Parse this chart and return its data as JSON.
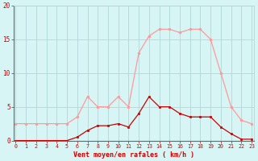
{
  "hours": [
    0,
    1,
    2,
    3,
    4,
    5,
    6,
    7,
    8,
    9,
    10,
    11,
    12,
    13,
    14,
    15,
    16,
    17,
    18,
    19,
    20,
    21,
    22,
    23
  ],
  "rafales": [
    2.5,
    2.5,
    2.5,
    2.5,
    2.5,
    2.5,
    3.5,
    6.5,
    5.0,
    5.0,
    6.5,
    5.0,
    13.0,
    15.5,
    16.5,
    16.5,
    16.0,
    16.5,
    16.5,
    15.0,
    10.0,
    5.0,
    3.0,
    2.5
  ],
  "moyen": [
    0.0,
    0.0,
    0.0,
    0.0,
    0.0,
    0.0,
    0.5,
    1.5,
    2.2,
    2.2,
    2.5,
    2.0,
    4.0,
    6.5,
    5.0,
    5.0,
    4.0,
    3.5,
    3.5,
    3.5,
    2.0,
    1.0,
    0.2,
    0.2
  ],
  "color_rafales": "#ff9999",
  "color_moyen": "#cc0000",
  "background": "#d8f5f5",
  "grid_color": "#b0d8d8",
  "xlabel": "Vent moyen/en rafales ( km/h )",
  "ylim": [
    0,
    20
  ],
  "yticks": [
    0,
    5,
    10,
    15,
    20
  ],
  "xlabel_color": "#cc0000",
  "tick_color": "#cc0000",
  "spine_color": "#666666"
}
